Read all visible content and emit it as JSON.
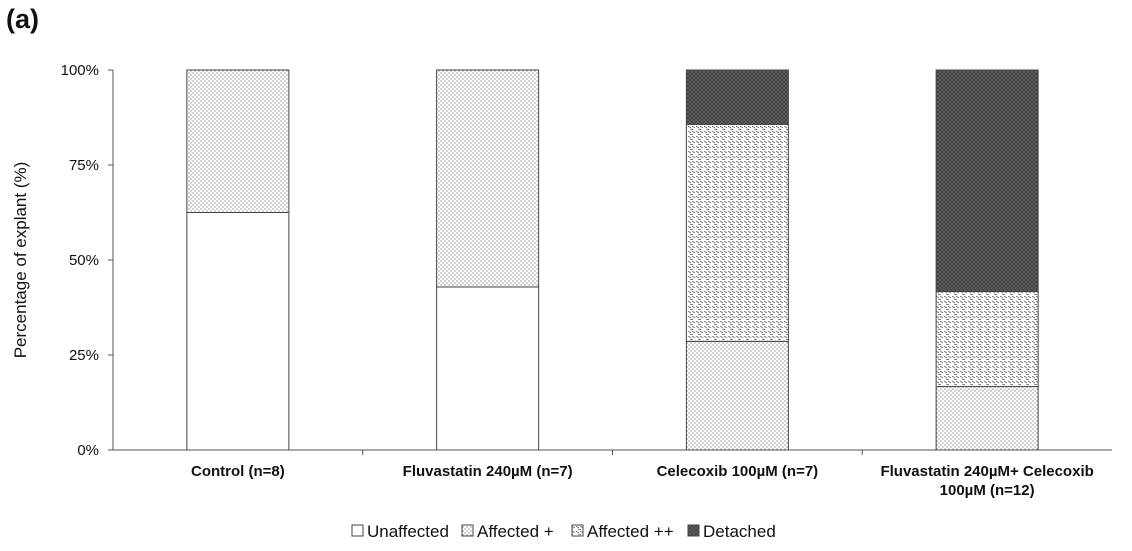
{
  "panel_label": "(a)",
  "chart_data": {
    "type": "bar",
    "stacked": true,
    "title": "",
    "xlabel": "",
    "ylabel": "Percentage of explant (%)",
    "ylim": [
      0,
      100
    ],
    "yticks": [
      "0%",
      "25%",
      "50%",
      "75%",
      "100%"
    ],
    "categories": [
      [
        "Control (n=8)"
      ],
      [
        "Fluvastatin 240µM (n=7)"
      ],
      [
        "Celecoxib 100µM (n=7)"
      ],
      [
        "Fluvastatin 240µM+ Celecoxib",
        "100µM (n=12)"
      ]
    ],
    "series": [
      {
        "name": "Unaffected",
        "pattern": "blank",
        "color": "#ffffff",
        "values": [
          62.5,
          42.9,
          0,
          0
        ]
      },
      {
        "name": "Affected +",
        "pattern": "dots",
        "color": "#d8d8d8",
        "values": [
          37.5,
          57.1,
          28.6,
          16.7
        ]
      },
      {
        "name": "Affected ++",
        "pattern": "dashes",
        "color": "#bdbdbd",
        "values": [
          0,
          0,
          57.1,
          25.0
        ]
      },
      {
        "name": "Detached",
        "pattern": "dark",
        "color": "#4a4a4a",
        "values": [
          0,
          0,
          14.3,
          58.3
        ]
      }
    ],
    "legend_position": "bottom",
    "grid": false
  }
}
